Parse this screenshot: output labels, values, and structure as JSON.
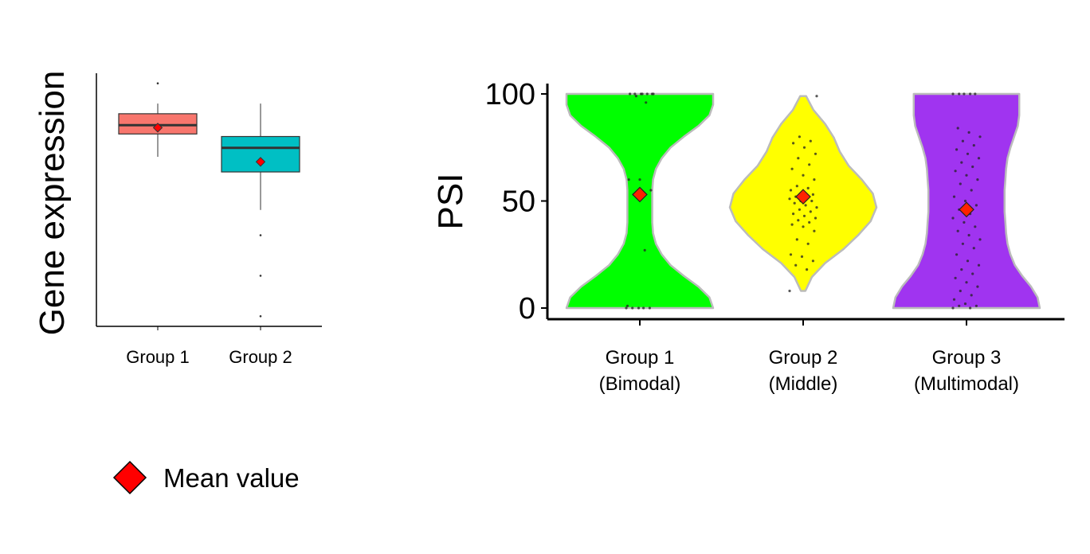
{
  "chart_data": [
    {
      "type": "box",
      "ylabel": "Gene expression",
      "categories": [
        "Group 1",
        "Group 2"
      ],
      "y_tick_labels_shown": false,
      "ylim": [
        0,
        10
      ],
      "boxes": [
        {
          "name": "Group 1",
          "color": "#F8766D",
          "whisker_low": 6.7,
          "q1": 7.6,
          "median": 7.95,
          "q3": 8.4,
          "whisker_high": 8.8,
          "mean": 7.85,
          "outliers": [
            9.6
          ]
        },
        {
          "name": "Group 2",
          "color": "#00BFC4",
          "whisker_low": 4.6,
          "q1": 6.1,
          "median": 7.05,
          "q3": 7.5,
          "whisker_high": 8.8,
          "mean": 6.5,
          "outliers": [
            3.6,
            2.0,
            0.4
          ]
        }
      ]
    },
    {
      "type": "violin",
      "ylabel": "PSI",
      "ylim": [
        0,
        100
      ],
      "yticks": [
        0,
        50,
        100
      ],
      "categories": [
        "Group 1\n(Bimodal)",
        "Group 2\n(Middle)",
        "Group 3\n(Multimodal)"
      ],
      "category_lines": [
        [
          "Group 1",
          "(Bimodal)"
        ],
        [
          "Group 2",
          "(Middle)"
        ],
        [
          "Group 3",
          "(Multimodal)"
        ]
      ],
      "series": [
        {
          "color": "#00FF00",
          "range": [
            0,
            100
          ],
          "mean": 53,
          "density": [
            1.0,
            0.95,
            0.8,
            0.6,
            0.42,
            0.3,
            0.22,
            0.18,
            0.17,
            0.17,
            0.17,
            0.17,
            0.18,
            0.22,
            0.3,
            0.42,
            0.6,
            0.8,
            0.95,
            1.0,
            1.0
          ],
          "points": [
            0,
            0,
            0,
            0,
            0,
            1,
            27,
            53,
            55,
            60,
            60,
            96,
            100,
            100,
            100,
            100,
            100,
            99,
            100,
            100
          ]
        },
        {
          "color": "#FFFF00",
          "range": [
            8,
            99
          ],
          "mean": 52,
          "density": [
            0.03,
            0.12,
            0.3,
            0.55,
            0.75,
            0.92,
            1.0,
            0.95,
            0.8,
            0.62,
            0.5,
            0.42,
            0.3,
            0.14,
            0.04
          ],
          "points": [
            8,
            18,
            20,
            22,
            24,
            25,
            30,
            32,
            36,
            38,
            39,
            40,
            41,
            42,
            43,
            44,
            45,
            46,
            47,
            48,
            49,
            50,
            50,
            51,
            52,
            52,
            53,
            54,
            55,
            56,
            57,
            60,
            62,
            65,
            67,
            70,
            72,
            75,
            77,
            78,
            80,
            99
          ]
        },
        {
          "color": "#A034F0",
          "range": [
            0,
            100
          ],
          "mean": 46,
          "density": [
            1.0,
            0.97,
            0.88,
            0.76,
            0.66,
            0.6,
            0.56,
            0.54,
            0.53,
            0.52,
            0.52,
            0.52,
            0.53,
            0.54,
            0.56,
            0.6,
            0.65,
            0.7,
            0.72,
            0.72,
            0.72
          ],
          "points": [
            0,
            0,
            1,
            1,
            2,
            4,
            6,
            8,
            10,
            12,
            14,
            16,
            18,
            20,
            22,
            25,
            28,
            30,
            32,
            34,
            36,
            38,
            40,
            42,
            44,
            46,
            48,
            50,
            52,
            55,
            58,
            60,
            62,
            64,
            66,
            68,
            70,
            72,
            74,
            76,
            78,
            80,
            82,
            84,
            100,
            100,
            100,
            100,
            100
          ]
        }
      ]
    }
  ],
  "legend": {
    "marker": "red-diamond",
    "label": "Mean value",
    "marker_color": "#FF0000"
  }
}
